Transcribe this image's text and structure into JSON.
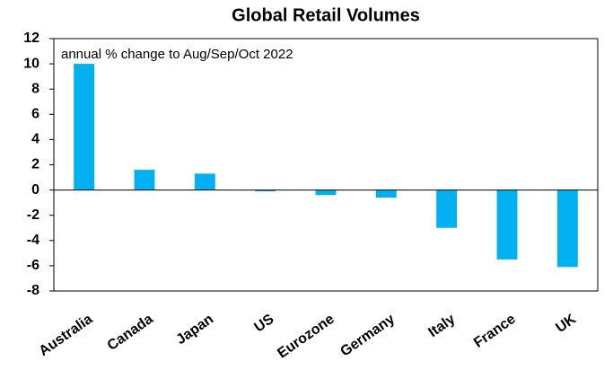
{
  "chart_data": {
    "type": "bar",
    "title": "Global Retail Volumes",
    "subtitle": "annual % change to Aug/Sep/Oct 2022",
    "categories": [
      "Australia",
      "Canada",
      "Japan",
      "US",
      "Eurozone",
      "Germany",
      "Italy",
      "France",
      "UK"
    ],
    "values": [
      10,
      1.6,
      1.3,
      -0.1,
      -0.4,
      -0.6,
      -3.0,
      -5.5,
      -6.1
    ],
    "color": "#00b0f0",
    "ylim": [
      -8,
      12
    ],
    "yticks": [
      -8,
      -6,
      -4,
      -2,
      0,
      2,
      4,
      6,
      8,
      10,
      12
    ],
    "grid": false
  }
}
